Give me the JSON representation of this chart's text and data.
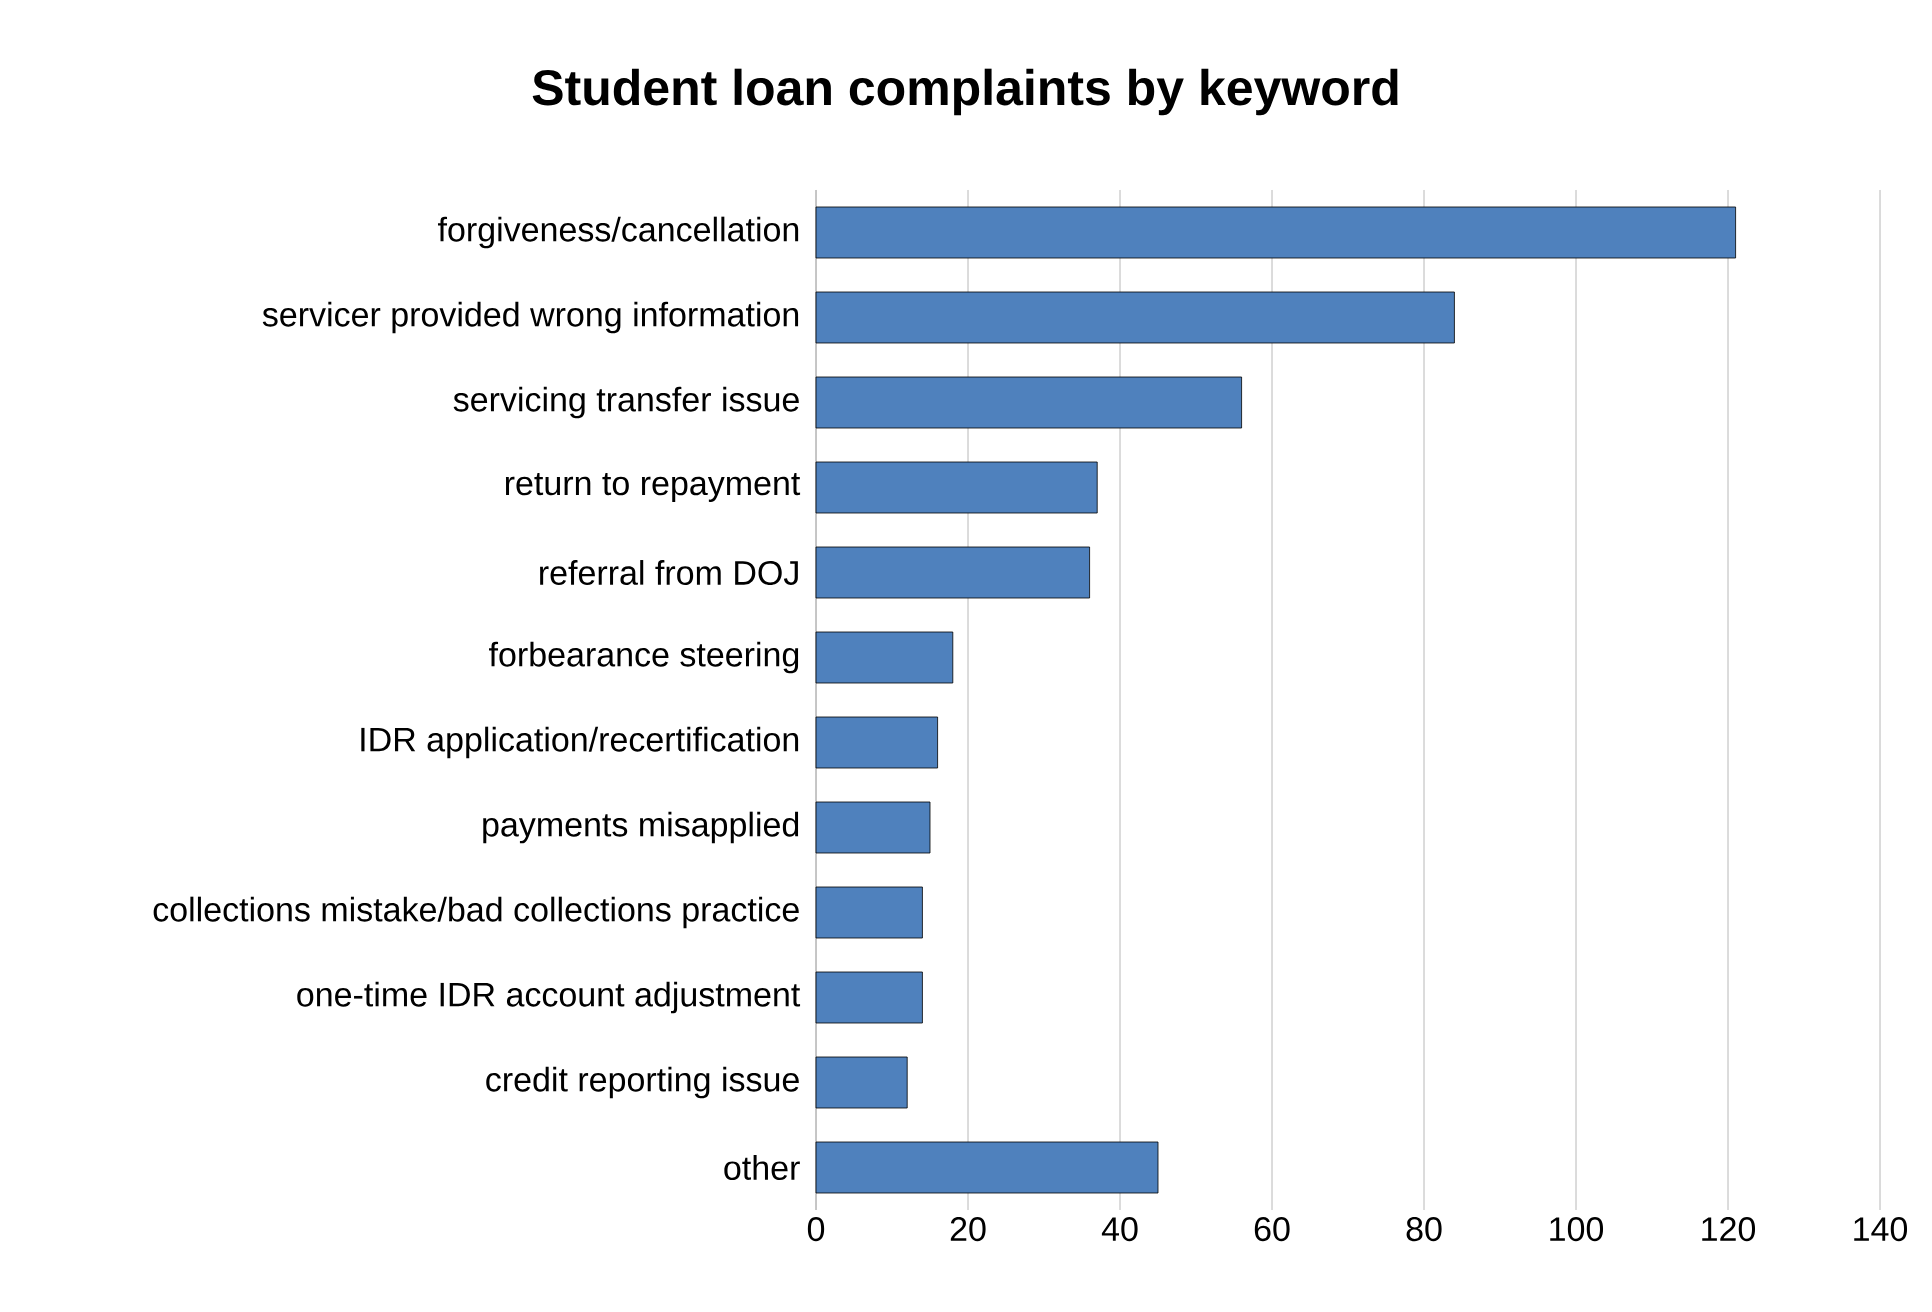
{
  "chart_data": {
    "type": "bar",
    "orientation": "horizontal",
    "title": "Student loan complaints by keyword",
    "categories": [
      "forgiveness/cancellation",
      "servicer provided wrong information",
      "servicing transfer issue",
      "return to repayment",
      "referral from DOJ",
      "forbearance steering",
      "IDR application/recertification",
      "payments misapplied",
      "collections mistake/bad collections practice",
      "one-time IDR account adjustment",
      "credit reporting issue",
      "other"
    ],
    "values": [
      121,
      84,
      56,
      37,
      36,
      18,
      16,
      15,
      14,
      14,
      12,
      45
    ],
    "color": "#4f81bd",
    "xlim": [
      0,
      140
    ],
    "xticks": [
      0,
      20,
      40,
      60,
      80,
      100,
      120,
      140
    ],
    "grid": "x"
  }
}
